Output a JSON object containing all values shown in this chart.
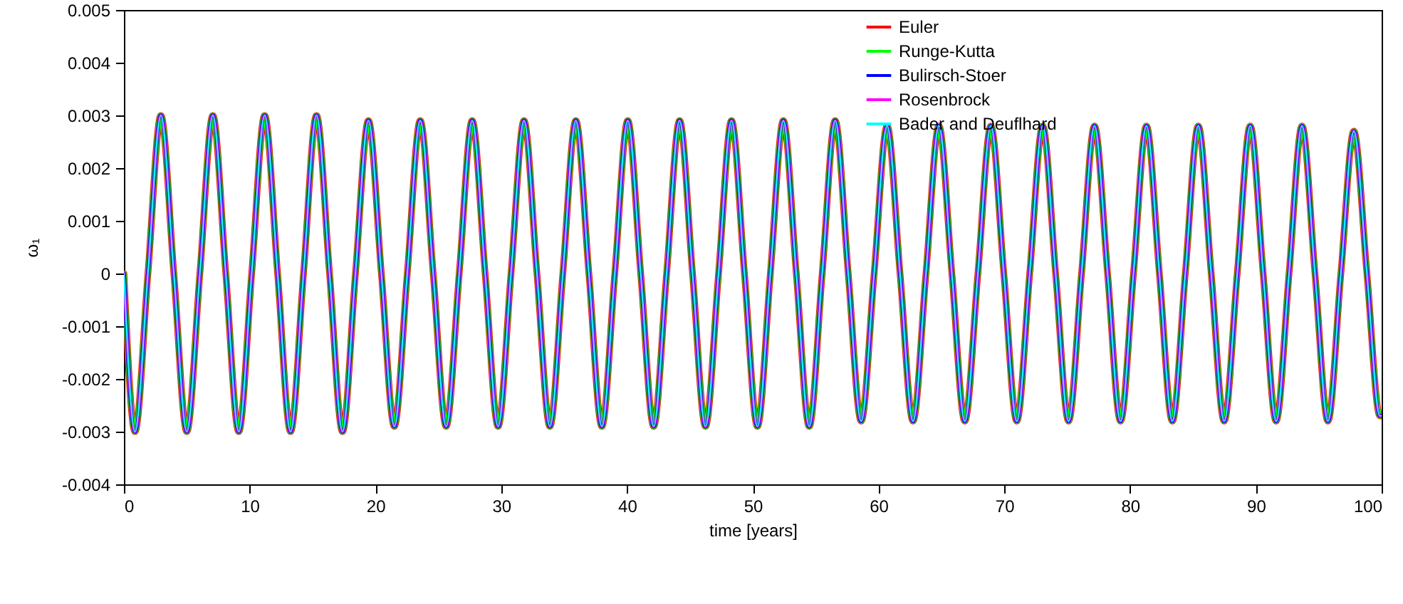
{
  "chart_data": {
    "type": "line",
    "xlabel": "time [years]",
    "ylabel": "ω₁",
    "x": [
      0,
      0.88,
      1.91,
      2.94,
      3.97,
      5.0,
      6.04,
      7.07,
      8.1,
      9.13,
      10.16,
      11.19,
      12.22,
      13.25,
      14.28,
      15.31,
      16.35,
      17.38,
      18.41,
      19.44,
      20.47,
      21.5,
      22.53,
      23.56,
      24.59,
      25.62,
      26.66,
      27.69,
      28.72,
      29.75,
      30.78,
      31.81,
      32.84,
      33.87,
      34.9,
      35.93,
      36.97,
      38.0,
      39.03,
      40.06,
      41.09,
      42.12,
      43.15,
      44.18,
      45.21,
      46.24,
      47.28,
      48.31,
      49.34,
      50.37,
      51.4,
      52.43,
      53.46,
      54.49,
      55.52,
      56.55,
      57.59,
      58.62,
      59.65,
      60.68,
      61.71,
      62.74,
      63.77,
      64.8,
      65.83,
      66.86,
      67.9,
      68.93,
      69.96,
      70.99,
      72.02,
      73.05,
      74.08,
      75.11,
      76.14,
      77.17,
      78.21,
      79.24,
      80.27,
      81.3,
      82.33,
      83.36,
      84.39,
      85.42,
      86.45,
      87.48,
      88.52,
      89.55,
      90.58,
      91.61,
      92.64,
      93.67,
      94.7,
      95.73,
      96.76,
      97.79,
      98.83,
      99.86,
      100
    ],
    "series": [
      {
        "name": "Euler",
        "color": "#ff0000",
        "values": [
          0,
          -0.003,
          0,
          0.003,
          0,
          -0.003,
          0,
          0.003,
          0,
          -0.003,
          0,
          0.003,
          0,
          -0.003,
          0,
          0.003,
          0,
          -0.003,
          0,
          0.0029,
          0,
          -0.0029,
          0,
          0.0029,
          0,
          -0.0029,
          0,
          0.0029,
          0,
          -0.0029,
          0,
          0.0029,
          0,
          -0.0029,
          0,
          0.0029,
          0,
          -0.0029,
          0,
          0.0029,
          0,
          -0.0029,
          0,
          0.0029,
          0,
          -0.0029,
          0,
          0.0029,
          0,
          -0.0029,
          0,
          0.0029,
          0,
          -0.0029,
          0,
          0.0029,
          0,
          -0.0028,
          0,
          0.0028,
          0,
          -0.0028,
          0,
          0.0028,
          0,
          -0.0028,
          0,
          0.0028,
          0,
          -0.0028,
          0,
          0.0028,
          0,
          -0.0028,
          0,
          0.0028,
          0,
          -0.0028,
          0,
          0.0028,
          0,
          -0.0028,
          0,
          0.0028,
          0,
          -0.0028,
          0,
          0.0028,
          0,
          -0.0028,
          0,
          0.0028,
          0,
          -0.0028,
          0,
          0.0027,
          0,
          -0.0027,
          -0.0027
        ]
      },
      {
        "name": "Runge-Kutta",
        "color": "#00ff00",
        "values": [
          0,
          -0.003,
          0,
          0.003,
          0,
          -0.003,
          0,
          0.003,
          0,
          -0.003,
          0,
          0.003,
          0,
          -0.003,
          0,
          0.003,
          0,
          -0.003,
          0,
          0.0029,
          0,
          -0.0029,
          0,
          0.0029,
          0,
          -0.0029,
          0,
          0.0029,
          0,
          -0.0029,
          0,
          0.0029,
          0,
          -0.0029,
          0,
          0.0029,
          0,
          -0.0029,
          0,
          0.0029,
          0,
          -0.0029,
          0,
          0.0029,
          0,
          -0.0029,
          0,
          0.0029,
          0,
          -0.0029,
          0,
          0.0029,
          0,
          -0.0029,
          0,
          0.0029,
          0,
          -0.0028,
          0,
          0.0028,
          0,
          -0.0028,
          0,
          0.0028,
          0,
          -0.0028,
          0,
          0.0028,
          0,
          -0.0028,
          0,
          0.0028,
          0,
          -0.0028,
          0,
          0.0028,
          0,
          -0.0028,
          0,
          0.0028,
          0,
          -0.0028,
          0,
          0.0028,
          0,
          -0.0028,
          0,
          0.0028,
          0,
          -0.0028,
          0,
          0.0028,
          0,
          -0.0028,
          0,
          0.0027,
          0,
          -0.0027,
          -0.0027
        ]
      },
      {
        "name": "Bulirsch-Stoer",
        "color": "#0000ff",
        "values": [
          0,
          -0.003,
          0,
          0.003,
          0,
          -0.003,
          0,
          0.003,
          0,
          -0.003,
          0,
          0.003,
          0,
          -0.003,
          0,
          0.003,
          0,
          -0.003,
          0,
          0.0029,
          0,
          -0.0029,
          0,
          0.0029,
          0,
          -0.0029,
          0,
          0.0029,
          0,
          -0.0029,
          0,
          0.0029,
          0,
          -0.0029,
          0,
          0.0029,
          0,
          -0.0029,
          0,
          0.0029,
          0,
          -0.0029,
          0,
          0.0029,
          0,
          -0.0029,
          0,
          0.0029,
          0,
          -0.0029,
          0,
          0.0029,
          0,
          -0.0029,
          0,
          0.0029,
          0,
          -0.0028,
          0,
          0.0028,
          0,
          -0.0028,
          0,
          0.0028,
          0,
          -0.0028,
          0,
          0.0028,
          0,
          -0.0028,
          0,
          0.0028,
          0,
          -0.0028,
          0,
          0.0028,
          0,
          -0.0028,
          0,
          0.0028,
          0,
          -0.0028,
          0,
          0.0028,
          0,
          -0.0028,
          0,
          0.0028,
          0,
          -0.0028,
          0,
          0.0028,
          0,
          -0.0028,
          0,
          0.0027,
          0,
          -0.0027,
          -0.0027
        ]
      },
      {
        "name": "Rosenbrock",
        "color": "#ff00ff",
        "values": [
          0,
          -0.003,
          0,
          0.003,
          0,
          -0.003,
          0,
          0.003,
          0,
          -0.003,
          0,
          0.003,
          0,
          -0.003,
          0,
          0.003,
          0,
          -0.003,
          0,
          0.0029,
          0,
          -0.0029,
          0,
          0.0029,
          0,
          -0.0029,
          0,
          0.0029,
          0,
          -0.0029,
          0,
          0.0029,
          0,
          -0.0029,
          0,
          0.0029,
          0,
          -0.0029,
          0,
          0.0029,
          0,
          -0.0029,
          0,
          0.0029,
          0,
          -0.0029,
          0,
          0.0029,
          0,
          -0.0029,
          0,
          0.0029,
          0,
          -0.0029,
          0,
          0.0029,
          0,
          -0.0028,
          0,
          0.0028,
          0,
          -0.0028,
          0,
          0.0028,
          0,
          -0.0028,
          0,
          0.0028,
          0,
          -0.0028,
          0,
          0.0028,
          0,
          -0.0028,
          0,
          0.0028,
          0,
          -0.0028,
          0,
          0.0028,
          0,
          -0.0028,
          0,
          0.0028,
          0,
          -0.0028,
          0,
          0.0028,
          0,
          -0.0028,
          0,
          0.0028,
          0,
          -0.0028,
          0,
          0.0027,
          0,
          -0.0027,
          -0.0027
        ]
      },
      {
        "name": "Bader and Deuflhard",
        "color": "#00ffff",
        "values": [
          0,
          -0.003,
          0,
          0.003,
          0,
          -0.003,
          0,
          0.003,
          0,
          -0.003,
          0,
          0.003,
          0,
          -0.003,
          0,
          0.003,
          0,
          -0.003,
          0,
          0.0029,
          0,
          -0.0029,
          0,
          0.0029,
          0,
          -0.0029,
          0,
          0.0029,
          0,
          -0.0029,
          0,
          0.0029,
          0,
          -0.0029,
          0,
          0.0029,
          0,
          -0.0029,
          0,
          0.0029,
          0,
          -0.0029,
          0,
          0.0029,
          0,
          -0.0029,
          0,
          0.0029,
          0,
          -0.0029,
          0,
          0.0029,
          0,
          -0.0029,
          0,
          0.0029,
          0,
          -0.0028,
          0,
          0.0028,
          0,
          -0.0028,
          0,
          0.0028,
          0,
          -0.0028,
          0,
          0.0028,
          0,
          -0.0028,
          0,
          0.0028,
          0,
          -0.0028,
          0,
          0.0028,
          0,
          -0.0028,
          0,
          0.0028,
          0,
          -0.0028,
          0,
          0.0028,
          0,
          -0.0028,
          0,
          0.0028,
          0,
          -0.0028,
          0,
          0.0028,
          0,
          -0.0028,
          0,
          0.0027,
          0,
          -0.0027,
          -0.0027
        ]
      }
    ],
    "xlim": [
      0,
      100
    ],
    "xticks": [
      0,
      10,
      20,
      30,
      40,
      50,
      60,
      70,
      80,
      90,
      100
    ],
    "ylim": [
      -0.004,
      0.005
    ],
    "yticks": [
      -0.004,
      -0.003,
      -0.002,
      -0.001,
      0,
      0.001,
      0.002,
      0.003,
      0.004,
      0.005
    ],
    "grid": false,
    "legend": "top right",
    "marker": "none",
    "line_style": "solid"
  }
}
